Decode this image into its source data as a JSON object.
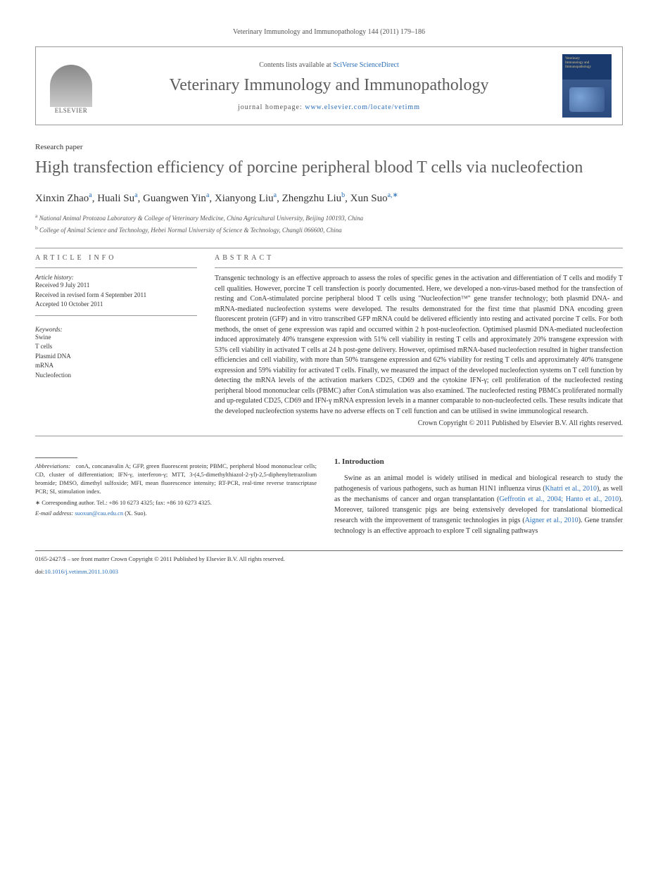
{
  "journal_ref": "Veterinary Immunology and Immunopathology 144 (2011) 179–186",
  "header": {
    "contents_prefix": "Contents lists available at ",
    "contents_link": "SciVerse ScienceDirect",
    "journal_name": "Veterinary Immunology and Immunopathology",
    "homepage_prefix": "journal homepage: ",
    "homepage_url": "www.elsevier.com/locate/vetimm",
    "elsevier": "ELSEVIER",
    "cover_line1": "Veterinary",
    "cover_line2": "Immunology and",
    "cover_line3": "Immunopathology"
  },
  "article_type": "Research paper",
  "title": "High transfection efficiency of porcine peripheral blood T cells via nucleofection",
  "authors_html": "Xinxin Zhao<sup>a</sup>, Huali Su<sup>a</sup>, Guangwen Yin<sup>a</sup>, Xianyong Liu<sup>a</sup>, Zhengzhu Liu<sup>b</sup>, Xun Suo<sup>a,∗</sup>",
  "affiliations": {
    "a": "National Animal Protozoa Laboratory & College of Veterinary Medicine, China Agricultural University, Beijing 100193, China",
    "b": "College of Animal Science and Technology, Hebei Normal University of Science & Technology, Changli 066600, China"
  },
  "article_info_head": "ARTICLE INFO",
  "abstract_head": "ABSTRACT",
  "history_label": "Article history:",
  "history": [
    "Received 9 July 2011",
    "Received in revised form 4 September 2011",
    "Accepted 10 October 2011"
  ],
  "keywords_label": "Keywords:",
  "keywords": [
    "Swine",
    "T cells",
    "Plasmid DNA",
    "mRNA",
    "Nucleofection"
  ],
  "abstract": "Transgenic technology is an effective approach to assess the roles of specific genes in the activation and differentiation of T cells and modify T cell qualities. However, porcine T cell transfection is poorly documented. Here, we developed a non-virus-based method for the transfection of resting and ConA-stimulated porcine peripheral blood T cells using \"Nucleofection™\" gene transfer technology; both plasmid DNA- and mRNA-mediated nucleofection systems were developed. The results demonstrated for the first time that plasmid DNA encoding green fluorescent protein (GFP) and in vitro transcribed GFP mRNA could be delivered efficiently into resting and activated porcine T cells. For both methods, the onset of gene expression was rapid and occurred within 2 h post-nucleofection. Optimised plasmid DNA-mediated nucleofection induced approximately 40% transgene expression with 51% cell viability in resting T cells and approximately 20% transgene expression with 53% cell viability in activated T cells at 24 h post-gene delivery. However, optimised mRNA-based nucleofection resulted in higher transfection efficiencies and cell viability, with more than 50% transgene expression and 62% viability for resting T cells and approximately 40% transgene expression and 59% viability for activated T cells. Finally, we measured the impact of the developed nucleofection systems on T cell function by detecting the mRNA levels of the activation markers CD25, CD69 and the cytokine IFN-γ; cell proliferation of the nucleofected resting peripheral blood mononuclear cells (PBMC) after ConA stimulation was also examined. The nucleofected resting PBMCs proliferated normally and up-regulated CD25, CD69 and IFN-γ mRNA expression levels in a manner comparable to non-nucleofected cells. These results indicate that the developed nucleofection systems have no adverse effects on T cell function and can be utilised in swine immunological research.",
  "copyright": "Crown Copyright © 2011 Published by Elsevier B.V. All rights reserved.",
  "intro_head": "1. Introduction",
  "intro_body_html": "Swine as an animal model is widely utilised in medical and biological research to study the pathogenesis of various pathogens, such as human H1N1 influenza virus (<span class=\"ref\">Khatri et al., 2010</span>), as well as the mechanisms of cancer and organ transplantation (<span class=\"ref\">Geffrotin et al., 2004; Hanto et al., 2010</span>). Moreover, tailored transgenic pigs are being extensively developed for translational biomedical research with the improvement of transgenic technologies in pigs (<span class=\"ref\">Aigner et al., 2010</span>). Gene transfer technology is an effective approach to explore T cell signaling pathways",
  "abbrev_label": "Abbreviations:",
  "abbrev_text": "conA, concanavalin A; GFP, green fluorescent protein; PBMC, peripheral blood mononuclear cells; CD, cluster of differentiation; IFN-γ, interferon-γ; MTT, 3-(4,5-dimethylthiazol-2-yl)-2,5-diphenyltetrazolium bromide; DMSO, dimethyl sulfoxide; MFI, mean fluorescence intensity; RT-PCR, real-time reverse transcriptase PCR; SI, stimulation index.",
  "corresp_text": "∗ Corresponding author. Tel.: +86 10 6273 4325; fax: +86 10 6273 4325.",
  "email_label": "E-mail address: ",
  "email": "suoxun@cau.edu.cn",
  "email_suffix": " (X. Suo).",
  "footer_line1": "0165-2427/$ – see front matter Crown Copyright © 2011 Published by Elsevier B.V. All rights reserved.",
  "footer_doi_prefix": "doi:",
  "footer_doi": "10.1016/j.vetimm.2011.10.003"
}
